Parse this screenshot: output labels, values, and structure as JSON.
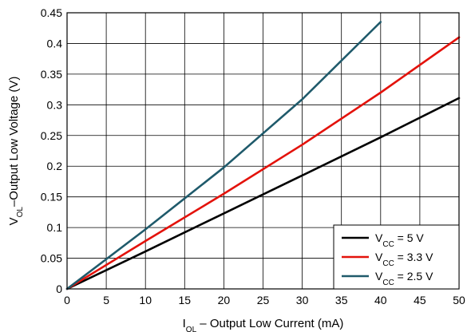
{
  "chart_data": {
    "type": "line",
    "xlabel": {
      "main": "I",
      "sub": "OL",
      "rest": " – Output Low Current (mA)"
    },
    "ylabel": {
      "main": "V",
      "sub": "OL",
      "rest": "–Output Low Voltage (V)"
    },
    "xlim": [
      0,
      50
    ],
    "ylim": [
      0,
      0.45
    ],
    "x_ticks": [
      0,
      5,
      10,
      15,
      20,
      25,
      30,
      35,
      40,
      45,
      50
    ],
    "y_ticks": [
      0,
      0.05,
      0.1,
      0.15,
      0.2,
      0.25,
      0.3,
      0.35,
      0.4,
      0.45
    ],
    "x_tick_labels": [
      "0",
      "5",
      "10",
      "15",
      "20",
      "25",
      "30",
      "35",
      "40",
      "45",
      "50"
    ],
    "y_tick_labels": [
      "0",
      "0.05",
      "0.1",
      "0.15",
      "0.2",
      "0.25",
      "0.3",
      "0.35",
      "0.4",
      "0.45"
    ],
    "grid": true,
    "legend_position": "bottom-right",
    "series": [
      {
        "name": {
          "main": "V",
          "sub": "CC",
          "rest": " = 5 V"
        },
        "color": "#000000",
        "x": [
          0,
          10,
          20,
          30,
          40,
          50
        ],
        "y": [
          0,
          0.061,
          0.123,
          0.185,
          0.247,
          0.311
        ]
      },
      {
        "name": {
          "main": "V",
          "sub": "CC",
          "rest": " = 3.3 V"
        },
        "color": "#e3120b",
        "x": [
          0,
          10,
          20,
          30,
          40,
          50
        ],
        "y": [
          0,
          0.078,
          0.155,
          0.235,
          0.32,
          0.41
        ]
      },
      {
        "name": {
          "main": "V",
          "sub": "CC",
          "rest": " = 2.5 V"
        },
        "color": "#1f5a6b",
        "x": [
          0,
          10,
          20,
          30,
          40
        ],
        "y": [
          0,
          0.097,
          0.198,
          0.309,
          0.435
        ]
      }
    ]
  }
}
